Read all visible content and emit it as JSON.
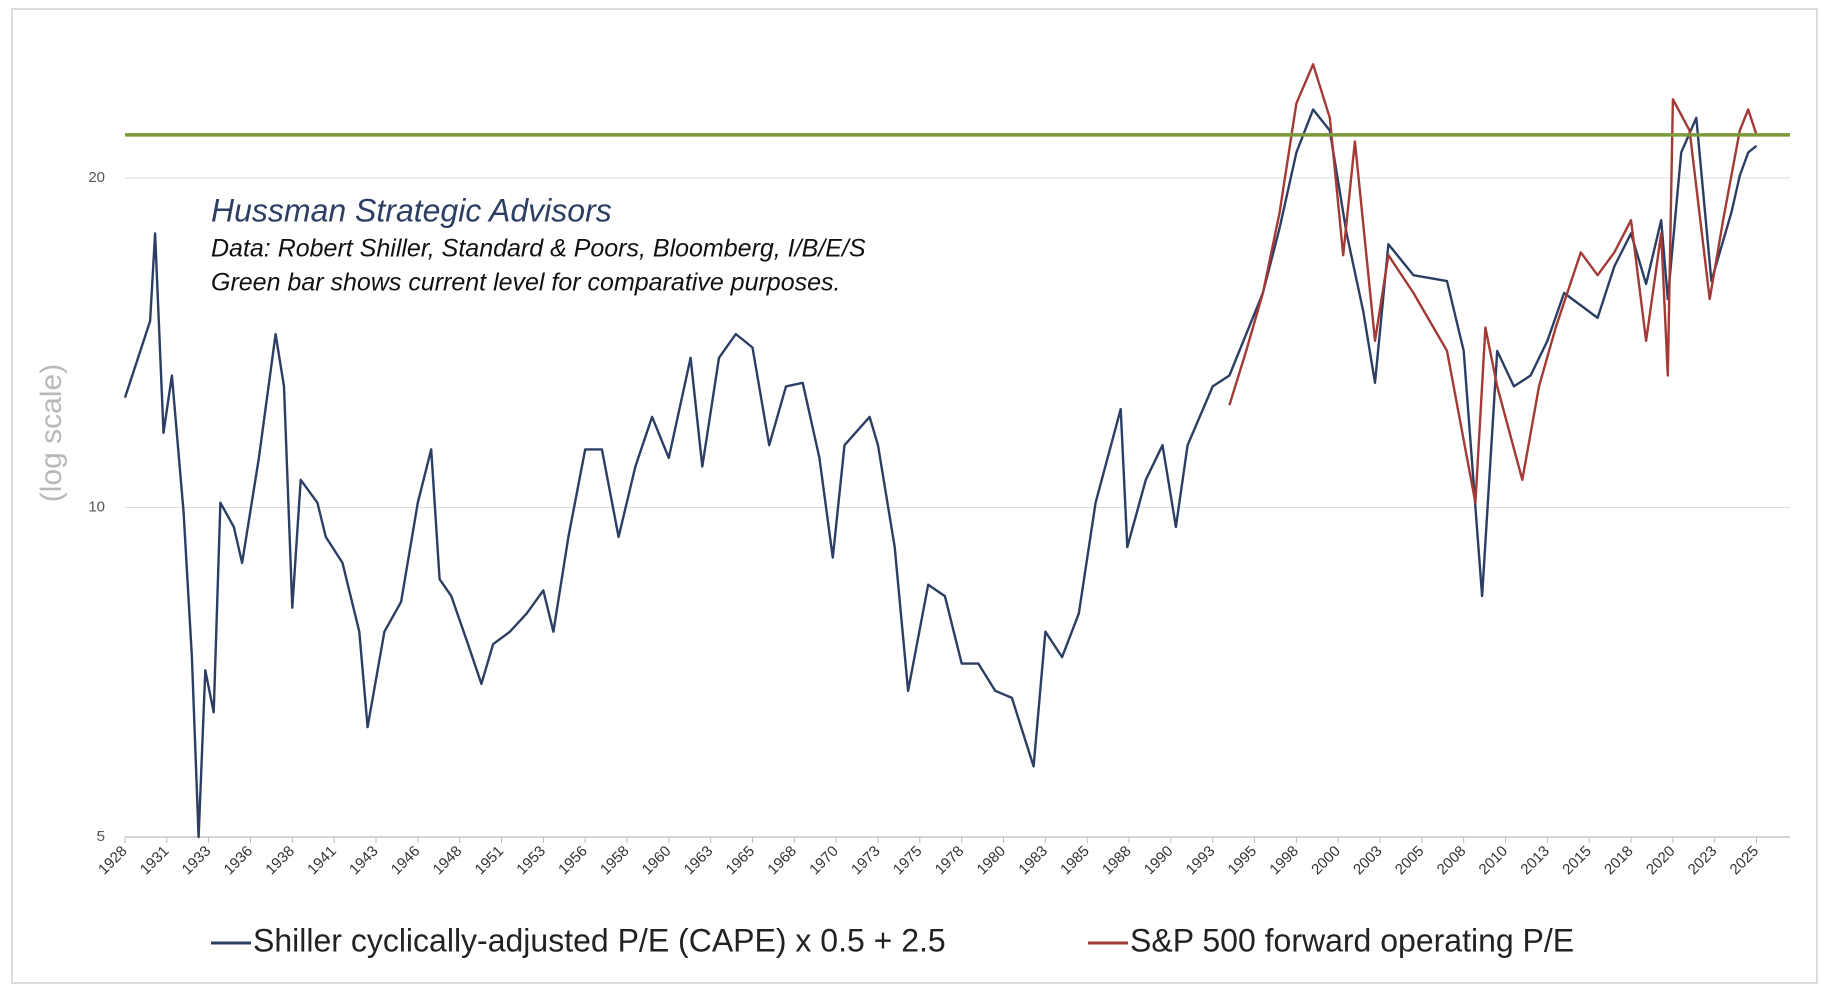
{
  "chart_data": {
    "type": "line",
    "annotation_title": "Hussman Strategic Advisors",
    "annotation_lines": [
      "Data: Robert Shiller, Standard & Poors, Bloomberg, I/B/E/S",
      "Green bar shows current level for comparative purposes."
    ],
    "y_label": "(log scale)",
    "log_scale": true,
    "grid": true,
    "legend": "bottom",
    "xlim": [
      1928,
      2027.5
    ],
    "xticks": [
      {
        "value": 1928,
        "label": "1928"
      },
      {
        "value": 1930.5,
        "label": "1931"
      },
      {
        "value": 1933,
        "label": "1933"
      },
      {
        "value": 1935.5,
        "label": "1936"
      },
      {
        "value": 1938,
        "label": "1938"
      },
      {
        "value": 1940.5,
        "label": "1941"
      },
      {
        "value": 1943,
        "label": "1943"
      },
      {
        "value": 1945.5,
        "label": "1946"
      },
      {
        "value": 1948,
        "label": "1948"
      },
      {
        "value": 1950.5,
        "label": "1951"
      },
      {
        "value": 1953,
        "label": "1953"
      },
      {
        "value": 1955.5,
        "label": "1956"
      },
      {
        "value": 1958,
        "label": "1958"
      },
      {
        "value": 1960.5,
        "label": "1960"
      },
      {
        "value": 1963,
        "label": "1963"
      },
      {
        "value": 1965.5,
        "label": "1965"
      },
      {
        "value": 1968,
        "label": "1968"
      },
      {
        "value": 1970.5,
        "label": "1970"
      },
      {
        "value": 1973,
        "label": "1973"
      },
      {
        "value": 1975.5,
        "label": "1975"
      },
      {
        "value": 1978,
        "label": "1978"
      },
      {
        "value": 1980.5,
        "label": "1980"
      },
      {
        "value": 1983,
        "label": "1983"
      },
      {
        "value": 1985.5,
        "label": "1985"
      },
      {
        "value": 1988,
        "label": "1988"
      },
      {
        "value": 1990.5,
        "label": "1990"
      },
      {
        "value": 1993,
        "label": "1993"
      },
      {
        "value": 1995.5,
        "label": "1995"
      },
      {
        "value": 1998,
        "label": "1998"
      },
      {
        "value": 2000.5,
        "label": "2000"
      },
      {
        "value": 2003,
        "label": "2003"
      },
      {
        "value": 2005.5,
        "label": "2005"
      },
      {
        "value": 2008,
        "label": "2008"
      },
      {
        "value": 2010.5,
        "label": "2010"
      },
      {
        "value": 2013,
        "label": "2013"
      },
      {
        "value": 2015.5,
        "label": "2015"
      },
      {
        "value": 2018,
        "label": "2018"
      },
      {
        "value": 2020.5,
        "label": "2020"
      },
      {
        "value": 2023,
        "label": "2023"
      },
      {
        "value": 2025.5,
        "label": "2025"
      }
    ],
    "ylim": [
      5,
      28
    ],
    "yticks": [
      5,
      10,
      20
    ],
    "reference_line": {
      "value": 21.9,
      "color": "#7a9a3a"
    },
    "series": [
      {
        "name": "Shiller cyclically-adjusted P/E (CAPE) x 0.5 + 2.5",
        "color": "#2c3e63",
        "x": [
          1928,
          1929.5,
          1929.8,
          1930.3,
          1930.8,
          1931.5,
          1932,
          1932.4,
          1932.8,
          1933.3,
          1933.7,
          1934.5,
          1935,
          1936,
          1937,
          1937.5,
          1938,
          1938.5,
          1939.5,
          1940,
          1941,
          1942,
          1942.5,
          1943.5,
          1944.5,
          1945.5,
          1946.3,
          1946.8,
          1947.5,
          1948.5,
          1949.3,
          1950,
          1951,
          1952,
          1953,
          1953.6,
          1954.5,
          1955.5,
          1956.5,
          1957.5,
          1958.5,
          1959.5,
          1960.5,
          1961.8,
          1962.5,
          1963.5,
          1964.5,
          1965.5,
          1966.5,
          1967.5,
          1968.5,
          1969.5,
          1970.3,
          1971,
          1972.5,
          1973,
          1974,
          1974.8,
          1976,
          1977,
          1978,
          1979,
          1980,
          1981,
          1982.3,
          1983,
          1984,
          1985,
          1986,
          1987.5,
          1987.9,
          1989,
          1990,
          1990.8,
          1991.5,
          1993,
          1994,
          1995,
          1996,
          1997,
          1998,
          1999,
          2000,
          2001,
          2002,
          2002.7,
          2003.5,
          2005,
          2007,
          2008,
          2009.1,
          2010,
          2011,
          2012,
          2013,
          2014,
          2016,
          2017,
          2018,
          2018.9,
          2019.8,
          2020.2,
          2021,
          2021.9,
          2022.8,
          2024,
          2024.5,
          2025,
          2025.5
        ],
        "values": [
          12.6,
          14.8,
          17.8,
          11.7,
          13.2,
          9.9,
          7.3,
          5.0,
          7.1,
          6.5,
          10.1,
          9.6,
          8.9,
          11.1,
          14.4,
          12.9,
          8.1,
          10.6,
          10.1,
          9.4,
          8.9,
          7.7,
          6.3,
          7.7,
          8.2,
          10.1,
          11.3,
          8.6,
          8.3,
          7.5,
          6.9,
          7.5,
          7.7,
          8.0,
          8.4,
          7.7,
          9.4,
          11.3,
          11.3,
          9.4,
          10.9,
          12.1,
          11.1,
          13.7,
          10.9,
          13.7,
          14.4,
          14.0,
          11.4,
          12.9,
          13.0,
          11.1,
          9.0,
          11.4,
          12.1,
          11.4,
          9.2,
          6.8,
          8.5,
          8.3,
          7.2,
          7.2,
          6.8,
          6.7,
          5.8,
          7.7,
          7.3,
          8.0,
          10.1,
          12.3,
          9.2,
          10.6,
          11.4,
          9.6,
          11.4,
          12.9,
          13.2,
          14.4,
          15.7,
          18.0,
          21.1,
          23.1,
          22.1,
          17.8,
          15.1,
          13.0,
          17.4,
          16.3,
          16.1,
          13.9,
          8.3,
          13.9,
          12.9,
          13.2,
          14.2,
          15.7,
          14.9,
          16.6,
          17.8,
          16.0,
          18.3,
          15.5,
          21.1,
          22.7,
          16.1,
          18.6,
          20.1,
          21.1,
          21.4
        ]
      },
      {
        "name": "S&P 500 forward operating P/E",
        "color": "#a33a35",
        "x": [
          1994,
          1995,
          1996,
          1997,
          1998,
          1999,
          2000,
          2000.8,
          2001.5,
          2002.7,
          2003.5,
          2005,
          2007,
          2008.7,
          2009.3,
          2010,
          2011.5,
          2012.5,
          2013.5,
          2015,
          2016,
          2017,
          2018,
          2018.9,
          2019.8,
          2020.2,
          2020.5,
          2021.5,
          2022.7,
          2023.5,
          2024.5,
          2025,
          2025.5
        ],
        "values": [
          12.4,
          13.9,
          15.7,
          18.6,
          23.4,
          25.4,
          22.7,
          17.0,
          21.6,
          14.2,
          17.0,
          15.7,
          13.9,
          10.1,
          14.6,
          12.9,
          10.6,
          12.9,
          14.6,
          17.1,
          16.3,
          17.1,
          18.3,
          14.2,
          17.8,
          13.2,
          23.6,
          22.1,
          15.5,
          18.3,
          22.1,
          23.1,
          21.9
        ]
      }
    ]
  }
}
